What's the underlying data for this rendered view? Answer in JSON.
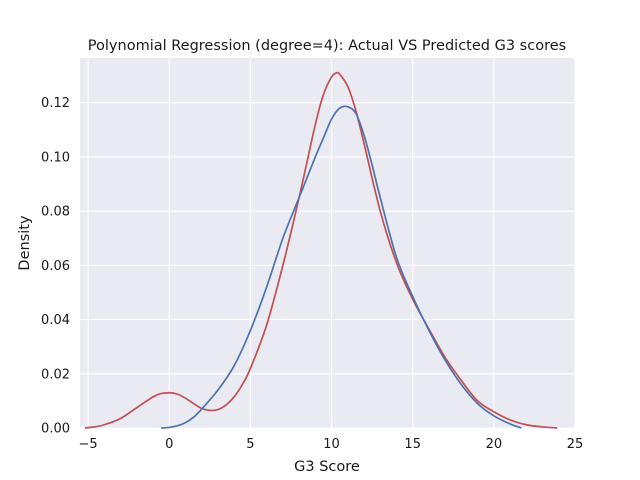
{
  "chart_data": {
    "type": "line",
    "title": "Polynomial Regression (degree=4): Actual VS Predicted G3 scores",
    "xlabel": "G3 Score",
    "ylabel": "Density",
    "xlim": [
      -5.5,
      25
    ],
    "ylim": [
      0,
      0.1365
    ],
    "x_ticks": [
      "−5",
      "0",
      "5",
      "10",
      "15",
      "20",
      "25"
    ],
    "x_tick_values": [
      -5,
      0,
      5,
      10,
      15,
      20,
      25
    ],
    "y_ticks": [
      "0.00",
      "0.02",
      "0.04",
      "0.06",
      "0.08",
      "0.10",
      "0.12"
    ],
    "y_tick_values": [
      0,
      0.02,
      0.04,
      0.06,
      0.08,
      0.1,
      0.12
    ],
    "grid": true,
    "background": "#eaeaf2",
    "series": [
      {
        "color": "#c44e52",
        "x": [
          -5.2,
          -4.5,
          -4,
          -3,
          -2,
          -1,
          -0.5,
          0,
          0.5,
          1,
          1.5,
          2,
          2.5,
          3,
          3.5,
          4,
          4.5,
          5,
          6,
          7,
          8,
          9,
          9.5,
          10,
          10.3,
          10.5,
          11,
          11.5,
          12,
          13,
          14,
          15,
          16,
          17,
          18,
          19,
          20,
          21,
          22,
          23,
          23.9
        ],
        "y": [
          0.0,
          0.0005,
          0.0012,
          0.0035,
          0.0075,
          0.0115,
          0.0127,
          0.013,
          0.0125,
          0.011,
          0.009,
          0.0072,
          0.0065,
          0.0068,
          0.0085,
          0.0115,
          0.016,
          0.022,
          0.038,
          0.06,
          0.085,
          0.112,
          0.123,
          0.1295,
          0.131,
          0.1305,
          0.126,
          0.117,
          0.105,
          0.08,
          0.061,
          0.0475,
          0.0365,
          0.026,
          0.0175,
          0.01,
          0.006,
          0.003,
          0.0012,
          0.0004,
          0.0
        ]
      },
      {
        "color": "#4c72b0",
        "x": [
          -0.5,
          0,
          0.5,
          1,
          1.5,
          2,
          3,
          4,
          5,
          6,
          7,
          8,
          9,
          9.5,
          10,
          10.5,
          11,
          11.5,
          12,
          12.5,
          13,
          14,
          15,
          16,
          17,
          18,
          19,
          20,
          21,
          21.7
        ],
        "y": [
          0.0,
          0.0002,
          0.0008,
          0.002,
          0.004,
          0.007,
          0.014,
          0.023,
          0.036,
          0.052,
          0.07,
          0.085,
          0.1,
          0.107,
          0.114,
          0.118,
          0.1185,
          0.116,
          0.108,
          0.097,
          0.085,
          0.063,
          0.0485,
          0.036,
          0.025,
          0.016,
          0.009,
          0.0045,
          0.0015,
          0.0
        ]
      }
    ]
  }
}
